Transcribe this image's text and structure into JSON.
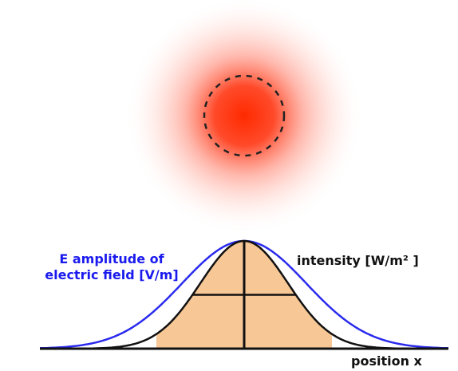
{
  "labels": {
    "amplitude": [
      "E amplitude of",
      "electric field [V/m]"
    ],
    "intensity": "intensity [W/m² ]",
    "axis": "position x"
  }
}
